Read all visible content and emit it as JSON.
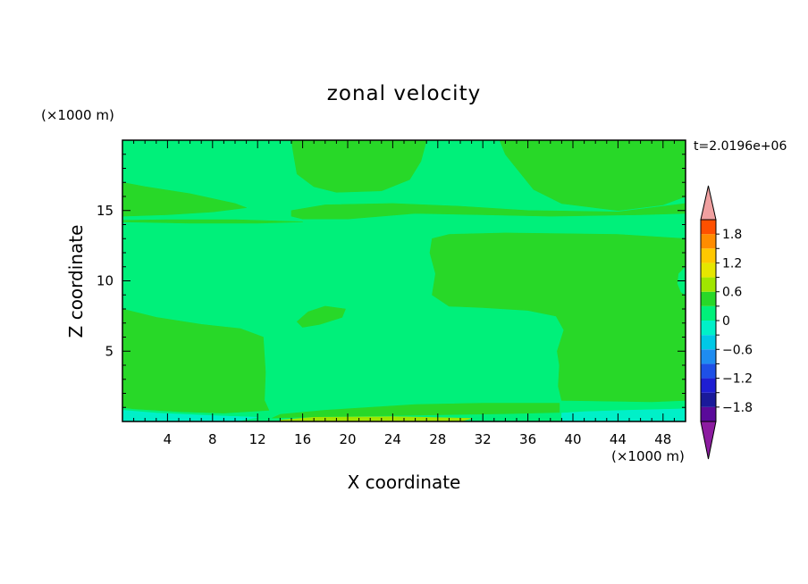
{
  "chart_data": {
    "type": "heatmap",
    "title": "zonal velocity",
    "xlabel": "X coordinate",
    "ylabel": "Z coordinate",
    "x_unit": "(×1000 m)",
    "y_unit": "(×1000 m)",
    "time_label": "t=2.0196e+06",
    "xlim": [
      0,
      50
    ],
    "ylim": [
      0,
      20
    ],
    "x_ticks": [
      4,
      8,
      12,
      16,
      20,
      24,
      28,
      32,
      36,
      40,
      44,
      48
    ],
    "y_ticks": [
      5,
      10,
      15
    ],
    "colorbar": {
      "levels": [
        -2.1,
        -1.8,
        -1.5,
        -1.2,
        -0.9,
        -0.6,
        -0.3,
        0,
        0.3,
        0.6,
        0.9,
        1.2,
        1.5,
        1.8,
        2.1
      ],
      "colors": [
        "#5a0a9a",
        "#1a1a9a",
        "#1e1ed2",
        "#1e50e6",
        "#1e8cf0",
        "#00c8e6",
        "#00f0c8",
        "#00f07a",
        "#28d828",
        "#a0e600",
        "#e6e600",
        "#ffc800",
        "#ff8c00",
        "#ff5000",
        "#e61414"
      ],
      "over_color": "#f0a0a0",
      "under_color": "#8c1ca0",
      "labels": [
        "1.8",
        "1.2",
        "0.6",
        "0",
        "-0.6",
        "-1.2",
        "-1.8"
      ],
      "label_values": [
        1.8,
        1.2,
        0.6,
        0,
        -0.6,
        -1.2,
        -1.8
      ]
    },
    "field": {
      "background": "#00f07a",
      "regions": [
        {
          "name": "upper-left",
          "color": "#28d828",
          "polygon": [
            [
              0,
              17
            ],
            [
              2,
              16.7
            ],
            [
              6,
              16.2
            ],
            [
              10,
              15.5
            ],
            [
              11,
              15.2
            ],
            [
              8,
              14.9
            ],
            [
              4,
              14.7
            ],
            [
              0,
              14.6
            ]
          ]
        },
        {
          "name": "thin-band-left",
          "color": "#28d828",
          "polygon": [
            [
              0,
              14.2
            ],
            [
              6,
              14.1
            ],
            [
              12,
              14.1
            ],
            [
              16,
              14.2
            ],
            [
              10,
              14.35
            ],
            [
              4,
              14.35
            ],
            [
              0,
              14.3
            ]
          ]
        },
        {
          "name": "upper-middle-lobe",
          "color": "#28d828",
          "polygon": [
            [
              15,
              20
            ],
            [
              27,
              20
            ],
            [
              26.5,
              18.5
            ],
            [
              25.5,
              17.2
            ],
            [
              23,
              16.4
            ],
            [
              19,
              16.3
            ],
            [
              17,
              16.7
            ],
            [
              15.5,
              17.6
            ],
            [
              15.2,
              19
            ]
          ]
        },
        {
          "name": "middle-band",
          "color": "#28d828",
          "polygon": [
            [
              15,
              15
            ],
            [
              18,
              15.4
            ],
            [
              24,
              15.5
            ],
            [
              30,
              15.3
            ],
            [
              36,
              15
            ],
            [
              44,
              14.9
            ],
            [
              48,
              15.3
            ],
            [
              50,
              15.5
            ],
            [
              50,
              14.8
            ],
            [
              46,
              14.7
            ],
            [
              38,
              14.6
            ],
            [
              32,
              14.7
            ],
            [
              26,
              14.8
            ],
            [
              20,
              14.4
            ],
            [
              16,
              14.4
            ],
            [
              15,
              14.6
            ]
          ]
        },
        {
          "name": "upper-right",
          "color": "#28d828",
          "polygon": [
            [
              33.5,
              20
            ],
            [
              50,
              20
            ],
            [
              50,
              16
            ],
            [
              48,
              15.4
            ],
            [
              44,
              15
            ],
            [
              39,
              15.5
            ],
            [
              36.5,
              16.5
            ],
            [
              35,
              18
            ],
            [
              34,
              19
            ]
          ]
        },
        {
          "name": "right-block",
          "color": "#28d828",
          "polygon": [
            [
              27.5,
              13
            ],
            [
              29,
              13.3
            ],
            [
              34,
              13.4
            ],
            [
              44,
              13.3
            ],
            [
              50,
              13
            ],
            [
              50,
              1.5
            ],
            [
              47,
              1.4
            ],
            [
              39,
              1.5
            ],
            [
              38.7,
              2.5
            ],
            [
              38.8,
              4
            ],
            [
              38.6,
              5
            ],
            [
              39.2,
              6.5
            ],
            [
              38.5,
              7.5
            ],
            [
              36,
              7.9
            ],
            [
              32,
              8.1
            ],
            [
              29,
              8.2
            ],
            [
              27.5,
              9
            ],
            [
              27.8,
              10.5
            ],
            [
              27.3,
              12
            ]
          ]
        },
        {
          "name": "small-oval",
          "color": "#28d828",
          "polygon": [
            [
              15.5,
              7.1
            ],
            [
              16.5,
              7.8
            ],
            [
              18,
              8.2
            ],
            [
              19.8,
              8.0
            ],
            [
              19.5,
              7.4
            ],
            [
              17.5,
              6.9
            ],
            [
              16,
              6.7
            ]
          ]
        },
        {
          "name": "lower-left",
          "color": "#28d828",
          "polygon": [
            [
              0,
              8
            ],
            [
              3,
              7.4
            ],
            [
              7,
              6.9
            ],
            [
              10.5,
              6.6
            ],
            [
              12.5,
              6
            ],
            [
              12.7,
              3.5
            ],
            [
              12.6,
              1.5
            ],
            [
              13,
              0.8
            ],
            [
              9,
              0.6
            ],
            [
              5,
              0.7
            ],
            [
              1,
              0.9
            ],
            [
              0,
              1.0
            ]
          ]
        },
        {
          "name": "bottom-strip",
          "color": "#28d828",
          "polygon": [
            [
              13.3,
              0.25
            ],
            [
              18,
              0.35
            ],
            [
              26,
              0.45
            ],
            [
              34,
              0.55
            ],
            [
              38.8,
              0.65
            ],
            [
              38.8,
              1.3
            ],
            [
              32,
              1.3
            ],
            [
              26,
              1.2
            ],
            [
              18,
              0.8
            ],
            [
              14,
              0.5
            ]
          ]
        },
        {
          "name": "bottom-yellow",
          "color": "#a0e600",
          "polygon": [
            [
              14,
              0
            ],
            [
              30,
              0
            ],
            [
              31,
              0.22
            ],
            [
              24,
              0.35
            ],
            [
              17,
              0.3
            ],
            [
              14,
              0.1
            ]
          ]
        },
        {
          "name": "bottom-cyan-left",
          "color": "#00f0c8",
          "polygon": [
            [
              0,
              0
            ],
            [
              10,
              0
            ],
            [
              12,
              0.3
            ],
            [
              7,
              0.45
            ],
            [
              3,
              0.6
            ],
            [
              0,
              0.8
            ]
          ]
        },
        {
          "name": "bottom-cyan-right",
          "color": "#00f0c8",
          "polygon": [
            [
              39,
              0
            ],
            [
              50,
              0
            ],
            [
              50,
              0.9
            ],
            [
              45,
              0.8
            ],
            [
              41,
              0.7
            ],
            [
              39,
              0.6
            ]
          ]
        },
        {
          "name": "right-edge-notch",
          "color": "#00f07a",
          "polygon": [
            [
              50,
              11
            ],
            [
              49.4,
              10.5
            ],
            [
              49.3,
              9.8
            ],
            [
              49.6,
              9.2
            ],
            [
              50,
              9
            ]
          ]
        }
      ]
    }
  }
}
